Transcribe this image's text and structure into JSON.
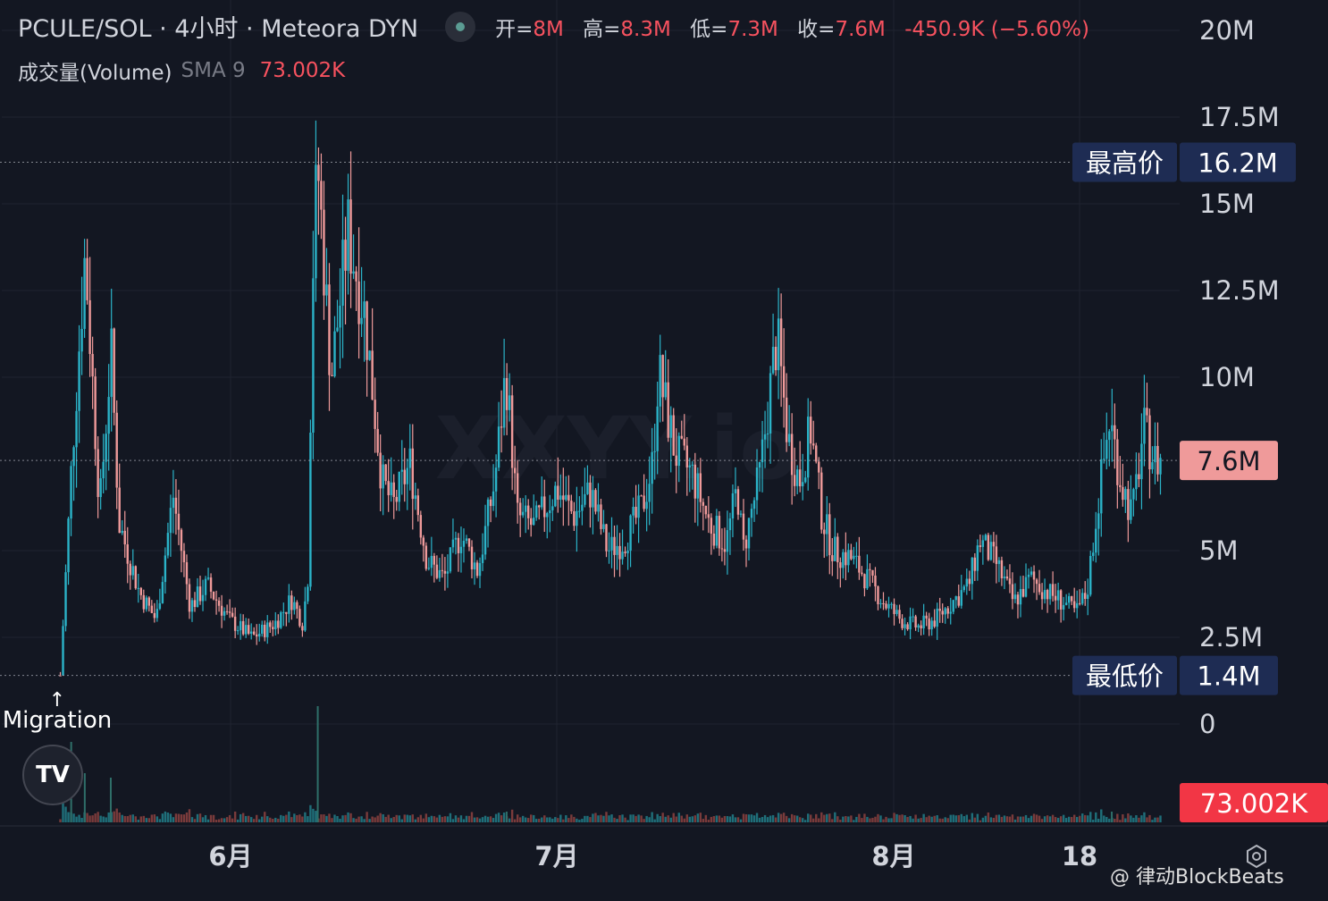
{
  "header": {
    "symbol": "PCULE/SOL · 4小时 · Meteora DYN",
    "ohlc": [
      {
        "k": "开=",
        "v": "8M"
      },
      {
        "k": "高=",
        "v": "8.3M"
      },
      {
        "k": "低=",
        "v": "7.3M"
      },
      {
        "k": "收=",
        "v": "7.6M"
      }
    ],
    "change": "-450.9K (−5.60%)",
    "volume_title": "成交量(Volume)",
    "sma_label": "SMA 9",
    "sma_value": "73.002K"
  },
  "chart_data": {
    "type": "candlestick",
    "x_ticks": [
      "6月",
      "7月",
      "8月",
      "18"
    ],
    "y_ticks": [
      "20M",
      "17.5M",
      "15M",
      "12.5M",
      "10M",
      "5M",
      "2.5M",
      "0"
    ],
    "y_range": [
      0,
      20
    ],
    "unit": "M",
    "high_label": {
      "text": "最高价",
      "value": "16.2M",
      "y": 16.2
    },
    "low_label": {
      "text": "最低价",
      "value": "1.4M",
      "y": 1.4
    },
    "last_price": {
      "value": "7.6M",
      "y": 7.6
    },
    "volume_last": "73.002K",
    "annotation": "Migration",
    "annotation_arrow": "↑",
    "trend": [
      [
        0,
        1.4
      ],
      [
        0.01,
        7.5
      ],
      [
        0.022,
        13.6
      ],
      [
        0.035,
        6.2
      ],
      [
        0.045,
        10.8
      ],
      [
        0.052,
        5.8
      ],
      [
        0.07,
        3.8
      ],
      [
        0.085,
        3.0
      ],
      [
        0.1,
        6.6
      ],
      [
        0.115,
        3.4
      ],
      [
        0.13,
        4.0
      ],
      [
        0.15,
        3.0
      ],
      [
        0.17,
        2.5
      ],
      [
        0.19,
        2.9
      ],
      [
        0.205,
        3.6
      ],
      [
        0.215,
        2.9
      ],
      [
        0.22,
        4.5
      ],
      [
        0.223,
        12.5
      ],
      [
        0.228,
        16.2
      ],
      [
        0.24,
        10.0
      ],
      [
        0.255,
        14.2
      ],
      [
        0.27,
        11.8
      ],
      [
        0.285,
        7.0
      ],
      [
        0.295,
        6.3
      ],
      [
        0.31,
        7.5
      ],
      [
        0.325,
        4.7
      ],
      [
        0.34,
        4.2
      ],
      [
        0.355,
        5.5
      ],
      [
        0.37,
        4.4
      ],
      [
        0.385,
        7.0
      ],
      [
        0.395,
        10.2
      ],
      [
        0.405,
        6.0
      ],
      [
        0.42,
        5.7
      ],
      [
        0.44,
        6.8
      ],
      [
        0.455,
        6.0
      ],
      [
        0.47,
        6.7
      ],
      [
        0.485,
        5.0
      ],
      [
        0.5,
        5.3
      ],
      [
        0.515,
        6.2
      ],
      [
        0.525,
        7.5
      ],
      [
        0.53,
        10.2
      ],
      [
        0.545,
        7.8
      ],
      [
        0.56,
        7.2
      ],
      [
        0.575,
        5.8
      ],
      [
        0.59,
        5.2
      ],
      [
        0.6,
        6.8
      ],
      [
        0.605,
        5.0
      ],
      [
        0.62,
        7.2
      ],
      [
        0.635,
        11.2
      ],
      [
        0.645,
        8.2
      ],
      [
        0.655,
        7.0
      ],
      [
        0.665,
        8.5
      ],
      [
        0.675,
        6.0
      ],
      [
        0.685,
        5.0
      ],
      [
        0.7,
        4.8
      ],
      [
        0.715,
        4.2
      ],
      [
        0.73,
        3.5
      ],
      [
        0.745,
        3.0
      ],
      [
        0.76,
        2.8
      ],
      [
        0.775,
        3.0
      ],
      [
        0.79,
        3.5
      ],
      [
        0.805,
        4.0
      ],
      [
        0.815,
        5.3
      ],
      [
        0.83,
        4.6
      ],
      [
        0.845,
        3.5
      ],
      [
        0.86,
        4.2
      ],
      [
        0.875,
        3.8
      ],
      [
        0.89,
        3.5
      ],
      [
        0.9,
        3.2
      ],
      [
        0.91,
        3.8
      ],
      [
        0.92,
        6.5
      ],
      [
        0.93,
        8.8
      ],
      [
        0.94,
        7.0
      ],
      [
        0.95,
        6.0
      ],
      [
        0.96,
        8.5
      ],
      [
        0.97,
        7.6
      ],
      [
        0.975,
        7.6
      ]
    ]
  },
  "watermark_text": "@ 律动BlockBeats",
  "logo_text": "TV",
  "chart_bg_text": "XXYY.io",
  "colors": {
    "bg": "#131722",
    "up": "#2bb3c8",
    "down": "#ef9a9a",
    "label_bg": "#1e2c53",
    "last_bg": "#ef9a9a",
    "volume_bg": "#f23645",
    "grid": "#1f2330",
    "text": "#d1d4dc",
    "red_text": "#f7525f"
  }
}
